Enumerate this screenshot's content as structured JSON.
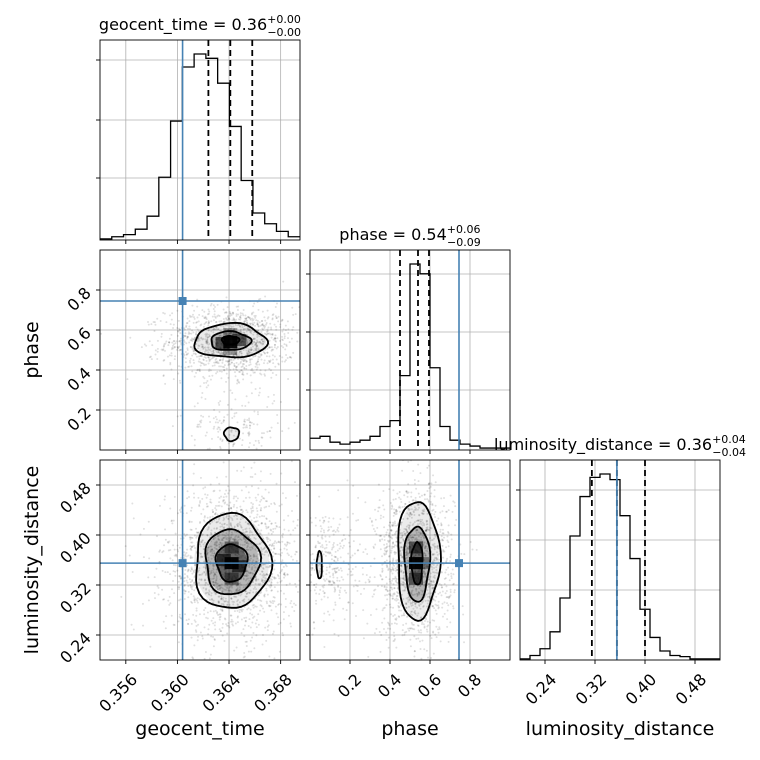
{
  "chart_data": {
    "type": "corner",
    "parameters": [
      {
        "name": "geocent_time",
        "axis_label": "geocent_time",
        "title_main": "geocent_time = 0.36",
        "title_plus": "+0.00",
        "title_minus": "−0.00",
        "range": [
          0.354,
          0.3695
        ],
        "ticks": [
          0.356,
          0.36,
          0.364,
          0.368
        ],
        "tick_labels": [
          "0.356",
          "0.360",
          "0.364",
          "0.368"
        ],
        "injection": 0.3604,
        "quantiles": [
          0.3624,
          0.3641,
          0.3658
        ],
        "hist_counts": [
          1,
          3,
          5,
          10,
          22,
          58,
          110,
          160,
          172,
          168,
          145,
          105,
          55,
          25,
          15,
          8,
          3
        ],
        "hist_ytick_fractions": [
          0.31,
          0.6,
          0.9
        ]
      },
      {
        "name": "phase",
        "axis_label": "phase",
        "title_main": "phase = 0.54",
        "title_plus": "+0.06",
        "title_minus": "−0.09",
        "range": [
          0.0,
          1.0
        ],
        "ticks": [
          0.2,
          0.4,
          0.6,
          0.8
        ],
        "tick_labels": [
          "0.2",
          "0.4",
          "0.6",
          "0.8"
        ],
        "injection": 0.745,
        "quantiles": [
          0.45,
          0.54,
          0.595
        ],
        "hist_counts": [
          6,
          7,
          4,
          3,
          4,
          5,
          7,
          12,
          15,
          38,
          95,
          90,
          42,
          12,
          5,
          3,
          2,
          1,
          1,
          1
        ],
        "hist_ytick_fractions": [
          0.3,
          0.59,
          0.88
        ]
      },
      {
        "name": "luminosity_distance",
        "axis_label": "luminosity_distance",
        "title_main": "luminosity_distance = 0.36",
        "title_plus": "+0.04",
        "title_minus": "−0.04",
        "range": [
          0.2,
          0.52
        ],
        "ticks": [
          0.24,
          0.32,
          0.4,
          0.48
        ],
        "tick_labels": [
          "0.24",
          "0.32",
          "0.40",
          "0.48"
        ],
        "injection": 0.355,
        "quantiles": [
          0.315,
          0.355,
          0.4
        ],
        "hist_counts": [
          1,
          4,
          10,
          25,
          55,
          110,
          145,
          162,
          165,
          160,
          128,
          90,
          45,
          20,
          8,
          4,
          3,
          1,
          1,
          1
        ],
        "hist_ytick_fractions": [
          0.35,
          0.6,
          0.85
        ]
      }
    ],
    "pairs": [
      {
        "x_param": 0,
        "y_param": 1,
        "injection_marker": [
          0.3604,
          0.745
        ],
        "blobs": [
          {
            "cx": 0.3641,
            "cy": 0.54,
            "sx": 0.00155,
            "sy": 0.055,
            "n": 1300
          },
          {
            "cx": 0.3643,
            "cy": 0.11,
            "sx": 0.0012,
            "sy": 0.06,
            "n": 180
          }
        ],
        "contours": [
          {
            "cx": 0.3641,
            "cy": 0.545,
            "rx": 0.0028,
            "ry": 0.085
          },
          {
            "cx": 0.3641,
            "cy": 0.545,
            "rx": 0.00155,
            "ry": 0.047
          },
          {
            "cx": 0.3641,
            "cy": 0.548,
            "rx": 0.00068,
            "ry": 0.022
          },
          {
            "cx": 0.3642,
            "cy": 0.08,
            "rx": 0.00058,
            "ry": 0.034
          }
        ],
        "dense_cells": [
          [
            0.3641,
            0.54,
            0.9
          ],
          [
            0.3635,
            0.535,
            0.6
          ],
          [
            0.3648,
            0.55,
            0.55
          ],
          [
            0.3641,
            0.505,
            0.35
          ],
          [
            0.3641,
            0.58,
            0.3
          ]
        ]
      },
      {
        "x_param": 0,
        "y_param": 2,
        "injection_marker": [
          0.3604,
          0.355
        ],
        "blobs": [
          {
            "cx": 0.3642,
            "cy": 0.355,
            "sx": 0.0016,
            "sy": 0.036,
            "n": 1800
          }
        ],
        "contours": [
          {
            "cx": 0.3642,
            "cy": 0.357,
            "rx": 0.0029,
            "ry": 0.076
          },
          {
            "cx": 0.3642,
            "cy": 0.357,
            "rx": 0.0021,
            "ry": 0.052
          },
          {
            "cx": 0.3642,
            "cy": 0.356,
            "rx": 0.0012,
            "ry": 0.03
          }
        ],
        "dense_cells": [
          [
            0.3642,
            0.355,
            0.95
          ],
          [
            0.3636,
            0.36,
            0.6
          ],
          [
            0.3648,
            0.35,
            0.6
          ],
          [
            0.3642,
            0.38,
            0.45
          ],
          [
            0.3642,
            0.33,
            0.45
          ]
        ]
      },
      {
        "x_param": 1,
        "y_param": 2,
        "injection_marker": [
          0.745,
          0.355
        ],
        "blobs": [
          {
            "cx": 0.52,
            "cy": 0.355,
            "sx": 0.06,
            "sy": 0.038,
            "n": 1400
          },
          {
            "cx": 0.08,
            "cy": 0.355,
            "sx": 0.05,
            "sy": 0.03,
            "n": 320
          }
        ],
        "contours": [
          {
            "cx": 0.54,
            "cy": 0.36,
            "rx": 0.105,
            "ry": 0.095
          },
          {
            "cx": 0.535,
            "cy": 0.355,
            "rx": 0.063,
            "ry": 0.06
          },
          {
            "cx": 0.535,
            "cy": 0.355,
            "rx": 0.028,
            "ry": 0.034
          },
          {
            "cx": 0.047,
            "cy": 0.352,
            "rx": 0.013,
            "ry": 0.022
          }
        ],
        "dense_cells": [
          [
            0.53,
            0.355,
            0.95
          ],
          [
            0.53,
            0.38,
            0.55
          ],
          [
            0.53,
            0.33,
            0.55
          ],
          [
            0.56,
            0.355,
            0.4
          ]
        ]
      }
    ],
    "colors": {
      "line": "#000000",
      "injection": "#4682b4",
      "grid": "#b0b0b0",
      "scatter": "#000000"
    },
    "grid": true
  }
}
